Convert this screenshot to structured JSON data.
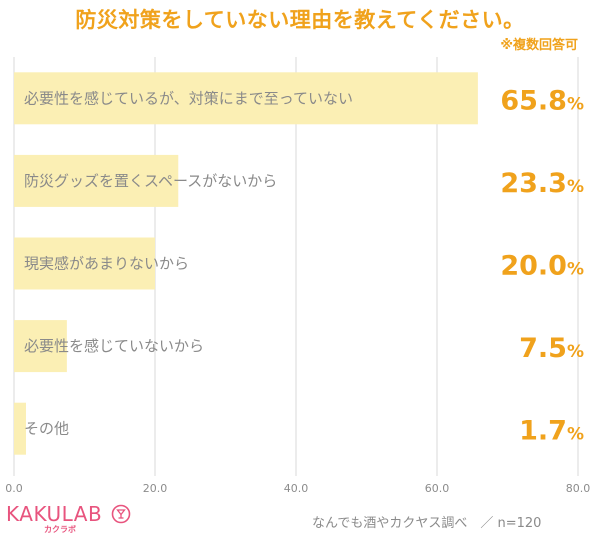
{
  "title": "防災対策をしていない理由を教えてください。",
  "note": "※複数回答可",
  "source": "なんでも酒やカクヤス調べ　／ n=120",
  "logo": {
    "text": "KAKULAB",
    "sub": "カクラボ",
    "mark_icon": "wine-glass-circle-icon"
  },
  "colors": {
    "accent": "#f0a21c",
    "bar": "#fbefb4",
    "grid": "#d9d9d9",
    "label": "#8a8a8a",
    "logo": "#e8547e"
  },
  "chart_data": {
    "type": "bar",
    "orientation": "horizontal",
    "title": "防災対策をしていない理由を教えてください。",
    "categories": [
      "必要性を感じているが、対策にまで至っていない",
      "防災グッズを置くスペースがないから",
      "現実感があまりないから",
      "必要性を感じていないから",
      "その他"
    ],
    "values": [
      65.8,
      23.3,
      20.0,
      7.5,
      1.7
    ],
    "value_labels": [
      "65.8",
      "23.3",
      "20.0",
      "7.5",
      "1.7"
    ],
    "value_unit": "%",
    "xlim": [
      0,
      80
    ],
    "xticks": [
      "0.0",
      "20.0",
      "40.0",
      "60.0",
      "80.0"
    ],
    "grid": true
  }
}
